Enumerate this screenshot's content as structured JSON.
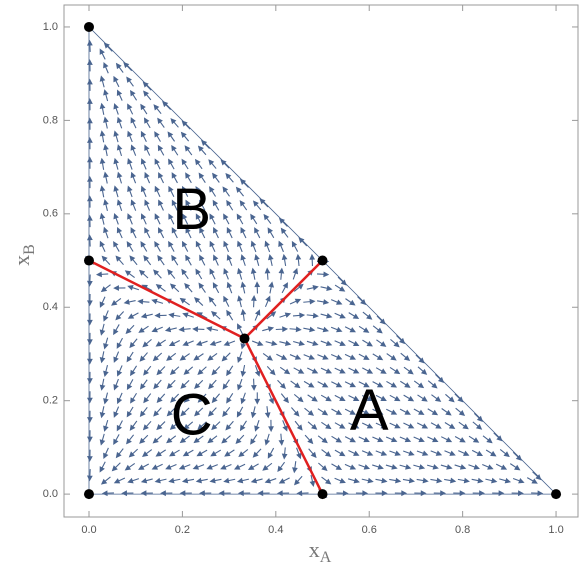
{
  "chart_data": {
    "type": "stream",
    "xlabel": [
      "x",
      "A"
    ],
    "ylabel": [
      "x",
      "B"
    ],
    "xlim": [
      -0.0535,
      1.047
    ],
    "ylim": [
      -0.049,
      1.047
    ],
    "xticks": [
      {
        "value": 0,
        "label": "0.0"
      },
      {
        "value": 0.2,
        "label": "0.2"
      },
      {
        "value": 0.4,
        "label": "0.4"
      },
      {
        "value": 0.6,
        "label": "0.6"
      },
      {
        "value": 0.8,
        "label": "0.8"
      },
      {
        "value": 1,
        "label": "1.0"
      }
    ],
    "yticks": [
      {
        "value": 0,
        "label": "0.0"
      },
      {
        "value": 0.2,
        "label": "0.2"
      },
      {
        "value": 0.4,
        "label": "0.4"
      },
      {
        "value": 0.6,
        "label": "0.6"
      },
      {
        "value": 0.8,
        "label": "0.8"
      },
      {
        "value": 1,
        "label": "1.0"
      }
    ],
    "stream_color": "#4a6590",
    "points": {
      "color": "#000000",
      "x": [
        0,
        0,
        0,
        0.5,
        0.5,
        1,
        0.333
      ],
      "y": [
        0,
        0.5,
        1,
        0.5,
        0,
        0,
        0.333
      ]
    },
    "lines": {
      "color": "#e02020",
      "segments": [
        {
          "x": [
            0.333,
            0
          ],
          "y": [
            0.333,
            0.5
          ]
        },
        {
          "x": [
            0.333,
            0.5
          ],
          "y": [
            0.333,
            0.5
          ]
        },
        {
          "x": [
            0.333,
            0.5
          ],
          "y": [
            0.333,
            0
          ]
        }
      ]
    },
    "regions": [
      {
        "label": "A",
        "x": 0.6,
        "y": 0.17
      },
      {
        "label": "B",
        "x": 0.22,
        "y": 0.6
      },
      {
        "label": "C",
        "x": 0.22,
        "y": 0.16
      }
    ]
  }
}
